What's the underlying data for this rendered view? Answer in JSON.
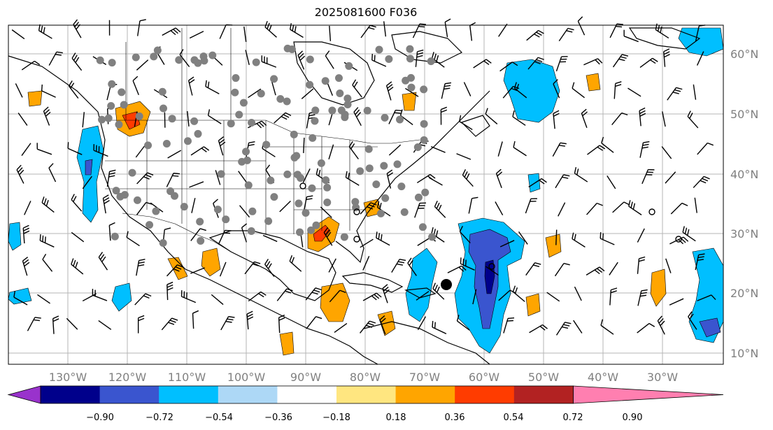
{
  "title": "2025081600 F036",
  "lat_labels": [
    "60°N",
    "50°N",
    "40°N",
    "30°N",
    "20°N",
    "10°N"
  ],
  "lon_labels": [
    "130°W",
    "120°W",
    "110°W",
    "100°W",
    "90°W",
    "80°W",
    "70°W",
    "60°W",
    "50°W",
    "40°W",
    "30°W"
  ],
  "colorbar": {
    "ticks": [
      "−0.90",
      "−0.72",
      "−0.54",
      "−0.36",
      "−0.18",
      "0.18",
      "0.36",
      "0.54",
      "0.72",
      "0.90"
    ],
    "colors": [
      "#9932cc",
      "#00008b",
      "#3a55cf",
      "#00bfff",
      "#add8f6",
      "#ffffff",
      "#ffe680",
      "#ffa500",
      "#ff3c00",
      "#b22222",
      "#ff7fb0"
    ]
  },
  "colors": {
    "grid": "#aaaaaa",
    "coast": "#000000",
    "station": "#808080"
  }
}
